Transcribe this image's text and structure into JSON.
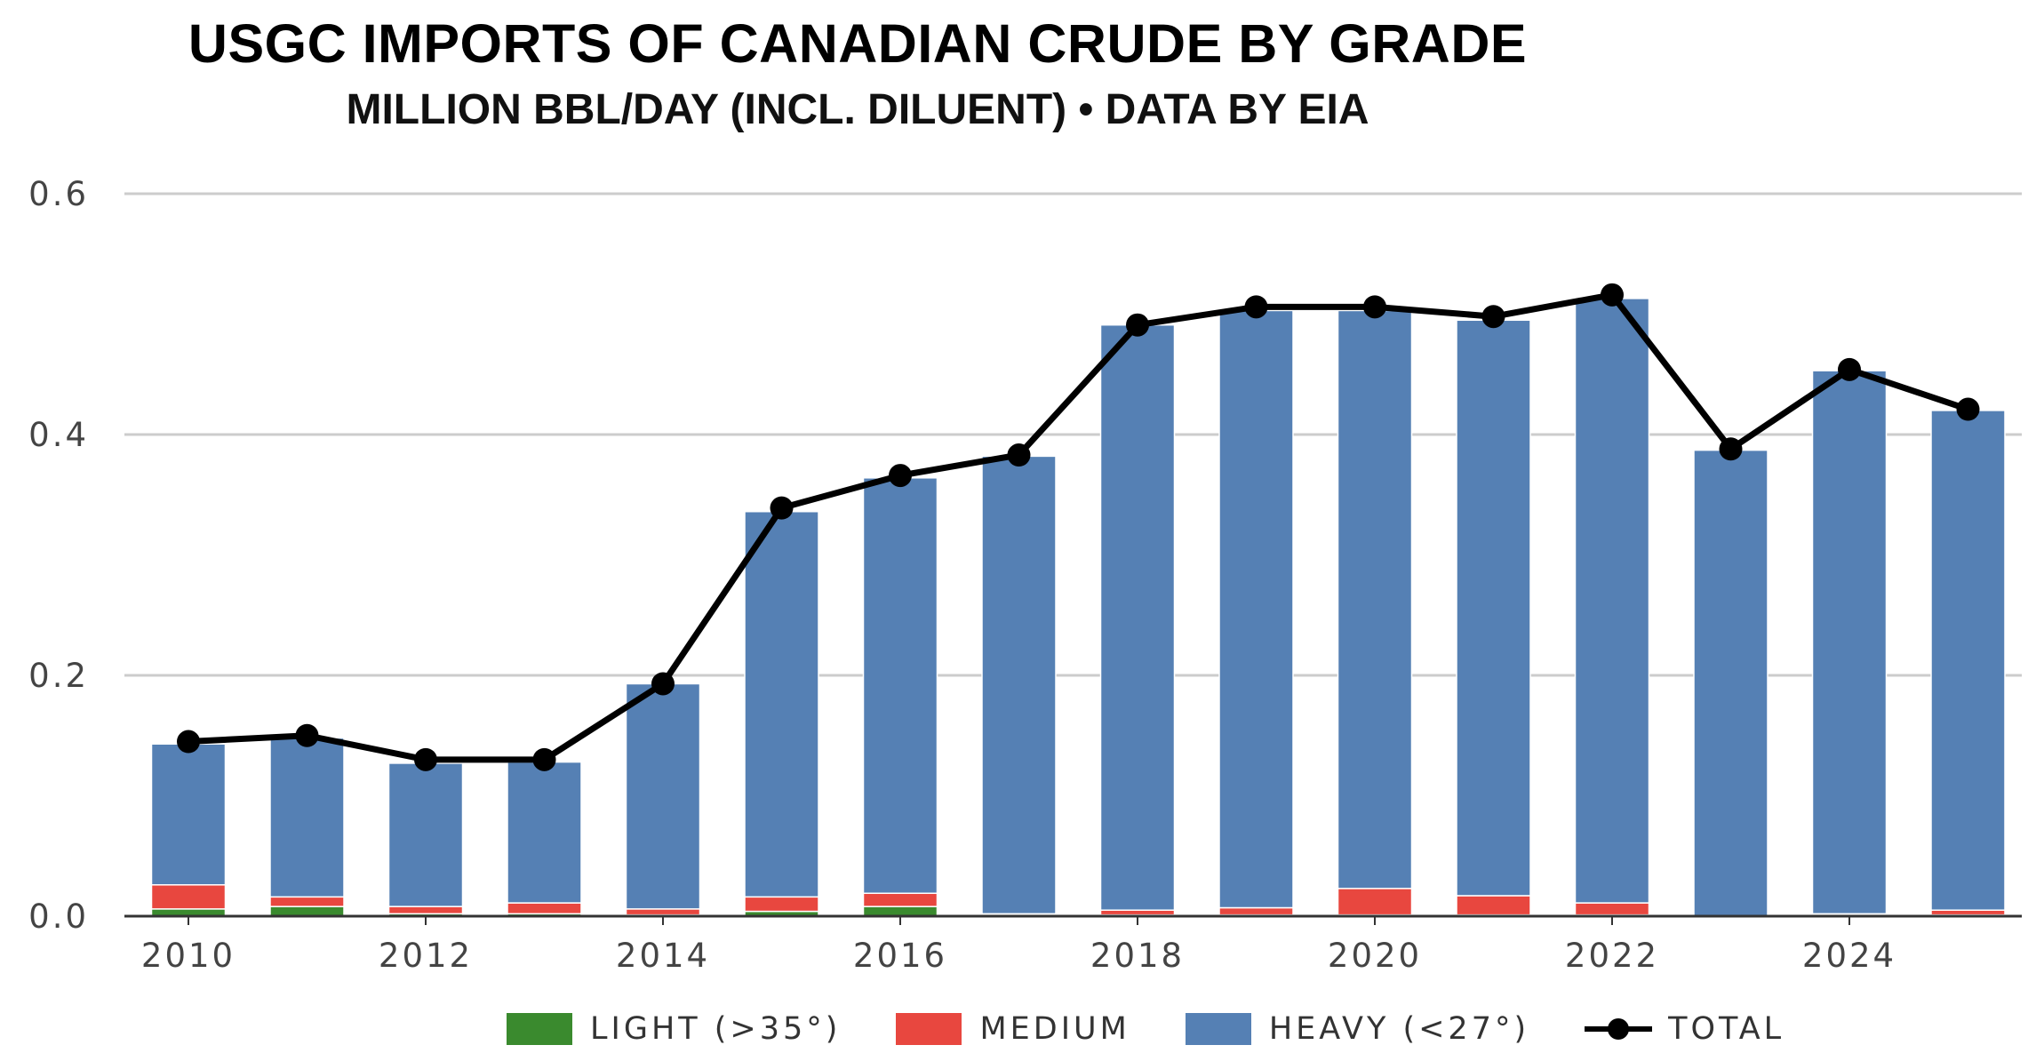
{
  "chart_data": {
    "type": "bar",
    "stacked": true,
    "title": "USGC IMPORTS OF CANADIAN CRUDE BY  GRADE",
    "subtitle": "MILLION BBL/DAY (INCL. DILUENT) • DATA BY EIA",
    "xlabel": "",
    "ylabel": "",
    "ylim": [
      0,
      0.6
    ],
    "yticks": [
      0.0,
      0.2,
      0.4,
      0.6
    ],
    "ytick_labels": [
      "0.0",
      "0.2",
      "0.4",
      "0.6"
    ],
    "categories": [
      2010,
      2011,
      2012,
      2013,
      2014,
      2015,
      2016,
      2017,
      2018,
      2019,
      2020,
      2021,
      2022,
      2023,
      2024,
      2025
    ],
    "xticks": [
      2010,
      2012,
      2014,
      2016,
      2018,
      2020,
      2022,
      2024
    ],
    "xtick_labels": [
      "2010",
      "2012",
      "2014",
      "2016",
      "2018",
      "2020",
      "2022",
      "2024"
    ],
    "grid": true,
    "legend_position": "bottom-center",
    "series": [
      {
        "name": "LIGHT (>35°)",
        "kind": "bar",
        "color": "#3a8a2e",
        "values": [
          0.006,
          0.008,
          0.002,
          0.002,
          0.001,
          0.004,
          0.008,
          0.001,
          0.001,
          0.001,
          0.001,
          0.001,
          0.001,
          0.0,
          0.001,
          0.001
        ]
      },
      {
        "name": "MEDIUM",
        "kind": "bar",
        "color": "#e8473f",
        "values": [
          0.02,
          0.008,
          0.006,
          0.009,
          0.005,
          0.012,
          0.011,
          0.001,
          0.004,
          0.006,
          0.022,
          0.016,
          0.01,
          0.0,
          0.001,
          0.004
        ]
      },
      {
        "name": "HEAVY (<27°)",
        "kind": "bar",
        "color": "#5580b4",
        "values": [
          0.117,
          0.132,
          0.119,
          0.117,
          0.187,
          0.32,
          0.345,
          0.38,
          0.486,
          0.496,
          0.48,
          0.478,
          0.502,
          0.387,
          0.451,
          0.415
        ]
      },
      {
        "name": "TOTAL",
        "kind": "line",
        "color": "#000000",
        "values": [
          0.145,
          0.15,
          0.13,
          0.13,
          0.193,
          0.339,
          0.366,
          0.383,
          0.491,
          0.506,
          0.506,
          0.498,
          0.516,
          0.388,
          0.454,
          0.421
        ]
      }
    ]
  }
}
